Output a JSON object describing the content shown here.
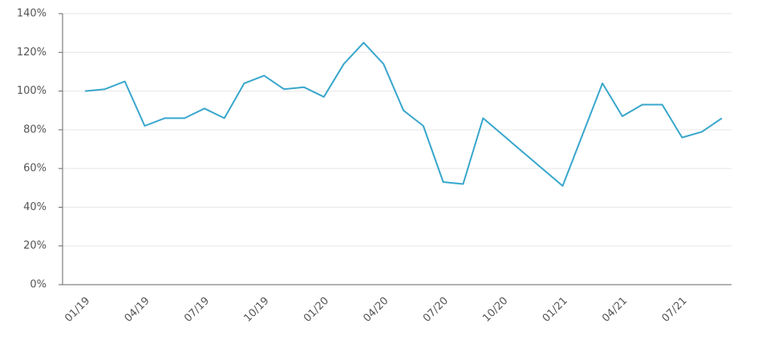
{
  "chart_data": {
    "type": "line",
    "x": [
      "01/19",
      "02/19",
      "03/19",
      "04/19",
      "05/19",
      "06/19",
      "07/19",
      "08/19",
      "09/19",
      "10/19",
      "11/19",
      "12/19",
      "01/20",
      "02/20",
      "03/20",
      "04/20",
      "05/20",
      "06/20",
      "07/20",
      "08/20",
      "09/20",
      "01/21",
      "03/21",
      "04/21",
      "05/21",
      "06/21",
      "07/21",
      "08/21",
      "09/21"
    ],
    "series": [
      {
        "color": "#38a6cc",
        "values": [
          100,
          101,
          105,
          82,
          86,
          86,
          91,
          86,
          104,
          108,
          101,
          102,
          97,
          114,
          125,
          114,
          90,
          82,
          53,
          52,
          86,
          51,
          104,
          87,
          93,
          93,
          76,
          79,
          86
        ]
      }
    ],
    "xticks": [
      "01/19",
      "04/19",
      "07/19",
      "10/19",
      "01/20",
      "04/20",
      "07/20",
      "10/20",
      "01/21",
      "04/21",
      "07/21"
    ],
    "ylim": [
      0,
      140
    ],
    "yticks": [
      {
        "value": 0,
        "label": "0%"
      },
      {
        "value": 20,
        "label": "20%"
      },
      {
        "value": 40,
        "label": "40%"
      },
      {
        "value": 60,
        "label": "60%"
      },
      {
        "value": 80,
        "label": "80%"
      },
      {
        "value": 100,
        "label": "100%"
      },
      {
        "value": 120,
        "label": "120%"
      },
      {
        "value": 140,
        "label": "140%"
      }
    ],
    "grid": true
  }
}
